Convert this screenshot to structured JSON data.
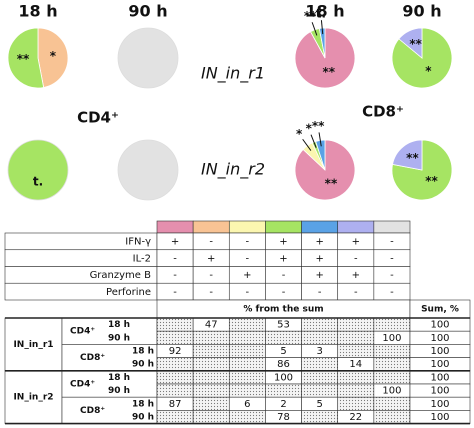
{
  "figure": {
    "pie_headers": [
      "18 h",
      "90 h",
      "18 h",
      "90 h"
    ],
    "cell_types": [
      "CD4⁺",
      "CD8⁺"
    ],
    "colors": [
      "#e58fae",
      "#f8c394",
      "#fbf6b0",
      "#a6e463",
      "#5aa2e6",
      "#aeb0f0",
      "#e2e2e2"
    ],
    "markers": [
      {
        "name": "IFN-γ",
        "signs": [
          "+",
          "-",
          "-",
          "+",
          "+",
          "+",
          "-"
        ]
      },
      {
        "name": "IL-2",
        "signs": [
          "-",
          "+",
          "-",
          "+",
          "+",
          "-",
          "-"
        ]
      },
      {
        "name": "Granzyme B",
        "signs": [
          "-",
          "-",
          "+",
          "-",
          "+",
          "+",
          "-"
        ]
      },
      {
        "name": "Perforine",
        "signs": [
          "-",
          "-",
          "-",
          "-",
          "-",
          "-",
          "-"
        ]
      }
    ],
    "table_header": "% from the sum",
    "sum_header": "Sum, %",
    "replicates": [
      {
        "name": "IN_in_r1",
        "cells": [
          {
            "times": [
              {
                "values": [
                  null,
                  47,
                  null,
                  53,
                  null,
                  null,
                  null
                ],
                "sum": 100,
                "annotations": [
                  null,
                  "*",
                  null,
                  "**",
                  null,
                  null,
                  null
                ]
              },
              {
                "values": [
                  null,
                  null,
                  null,
                  null,
                  null,
                  null,
                  100
                ],
                "sum": 100,
                "annotations": [
                  null,
                  null,
                  null,
                  null,
                  null,
                  null,
                  null
                ]
              }
            ]
          },
          {
            "times": [
              {
                "values": [
                  92,
                  null,
                  null,
                  5,
                  3,
                  null,
                  null
                ],
                "sum": 100,
                "annotations": [
                  "**",
                  null,
                  null,
                  "**",
                  "t.",
                  null,
                  null
                ]
              },
              {
                "values": [
                  null,
                  null,
                  null,
                  86,
                  null,
                  14,
                  null
                ],
                "sum": 100,
                "annotations": [
                  null,
                  null,
                  null,
                  "*",
                  null,
                  "**",
                  null
                ]
              }
            ]
          }
        ]
      },
      {
        "name": "IN_in_r2",
        "cells": [
          {
            "times": [
              {
                "values": [
                  null,
                  null,
                  null,
                  100,
                  null,
                  null,
                  null
                ],
                "sum": 100,
                "annotations": [
                  null,
                  null,
                  null,
                  "t.",
                  null,
                  null,
                  null
                ]
              },
              {
                "values": [
                  null,
                  null,
                  null,
                  null,
                  null,
                  null,
                  100
                ],
                "sum": 100,
                "annotations": [
                  null,
                  null,
                  null,
                  null,
                  null,
                  null,
                  null
                ]
              }
            ]
          },
          {
            "times": [
              {
                "values": [
                  87,
                  null,
                  6,
                  2,
                  5,
                  null,
                  null
                ],
                "sum": 100,
                "annotations": [
                  "**",
                  null,
                  "*",
                  "*",
                  "**",
                  null,
                  null
                ]
              },
              {
                "values": [
                  null,
                  null,
                  null,
                  78,
                  null,
                  22,
                  null
                ],
                "sum": 100,
                "annotations": [
                  null,
                  null,
                  null,
                  "**",
                  null,
                  "**",
                  null
                ]
              }
            ]
          }
        ]
      }
    ]
  }
}
